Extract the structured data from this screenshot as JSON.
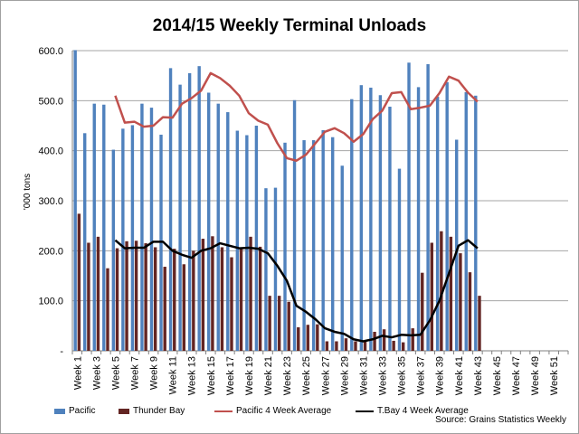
{
  "colors": {
    "pacific": "#4f81bd",
    "thunder_bay": "#632523",
    "pacific_avg": "#c0504d",
    "tbay_avg": "#000000",
    "grid": "#a6a6a6"
  },
  "chart_data": {
    "type": "bar",
    "title": "2014/15  Weekly Terminal Unloads",
    "xlabel": "",
    "ylabel": "'000 tons",
    "ylim": [
      0,
      600
    ],
    "yticks": [
      "-",
      "100.0",
      "200.0",
      "300.0",
      "400.0",
      "500.0",
      "600.0"
    ],
    "grid": true,
    "legend_position": "bottom",
    "categories": [
      "Week 1",
      "Week 2",
      "Week 3",
      "Week 4",
      "Week 5",
      "Week 6",
      "Week 7",
      "Week 8",
      "Week 9",
      "Week 10",
      "Week 11",
      "Week 12",
      "Week 13",
      "Week 14",
      "Week 15",
      "Week 16",
      "Week 17",
      "Week 18",
      "Week 19",
      "Week 20",
      "Week 21",
      "Week 22",
      "Week 23",
      "Week 24",
      "Week 25",
      "Week 26",
      "Week 27",
      "Week 28",
      "Week 29",
      "Week 30",
      "Week 31",
      "Week 32",
      "Week 33",
      "Week 34",
      "Week 35",
      "Week 36",
      "Week 37",
      "Week 38",
      "Week 39",
      "Week 40",
      "Week 41",
      "Week 42",
      "Week 43",
      "Week 44",
      "Week 45",
      "Week 46",
      "Week 47",
      "Week 48",
      "Week 49",
      "Week 50",
      "Week 51",
      "Week 52"
    ],
    "x_tick_labels": [
      "Week 1",
      "Week 3",
      "Week 5",
      "Week 7",
      "Week 9",
      "Week 11",
      "Week 13",
      "Week 15",
      "Week 17",
      "Week 19",
      "Week 21",
      "Week 23",
      "Week 25",
      "Week 27",
      "Week 29",
      "Week 31",
      "Week 33",
      "Week 35",
      "Week 37",
      "Week 39",
      "Week 41",
      "Week 43",
      "Week 45",
      "Week 47",
      "Week 49",
      "Week 51"
    ],
    "series": [
      {
        "name": "Pacific",
        "kind": "bar",
        "values": [
          601,
          435,
          494,
          492,
          402,
          444,
          451,
          494,
          486,
          432,
          565,
          532,
          555,
          569,
          516,
          494,
          477,
          440,
          431,
          450,
          325,
          326,
          416,
          501,
          421,
          421,
          441,
          427,
          370,
          503,
          531,
          526,
          511,
          488,
          364,
          576,
          527,
          573,
          508,
          537,
          422,
          517,
          510,
          null,
          null,
          null,
          null,
          null,
          null,
          null,
          null,
          null
        ]
      },
      {
        "name": "Thunder Bay",
        "kind": "bar",
        "values": [
          274,
          216,
          228,
          165,
          205,
          219,
          220,
          215,
          207,
          168,
          204,
          173,
          200,
          224,
          229,
          207,
          187,
          205,
          228,
          208,
          110,
          110,
          98,
          47,
          52,
          53,
          19,
          19,
          25,
          19,
          19,
          38,
          43,
          20,
          17,
          45,
          156,
          216,
          239,
          228,
          195,
          157,
          110,
          null,
          null,
          null,
          null,
          null,
          null,
          null,
          null,
          null
        ]
      },
      {
        "name": "Pacific 4 Week Average",
        "kind": "line",
        "values": [
          null,
          null,
          null,
          null,
          510,
          456,
          458,
          448,
          450,
          467,
          466,
          494,
          505,
          520,
          555,
          545,
          530,
          510,
          475,
          460,
          452,
          415,
          385,
          380,
          392,
          415,
          438,
          445,
          435,
          418,
          433,
          463,
          480,
          515,
          517,
          483,
          486,
          490,
          515,
          548,
          540,
          516,
          498,
          null,
          null,
          null,
          null,
          null,
          null,
          null,
          null,
          null
        ]
      },
      {
        "name": "T.Bay 4 Week Average",
        "kind": "line",
        "values": [
          null,
          null,
          null,
          null,
          221,
          205,
          206,
          206,
          218,
          218,
          200,
          192,
          186,
          200,
          205,
          215,
          210,
          205,
          206,
          204,
          195,
          170,
          140,
          90,
          78,
          63,
          45,
          38,
          34,
          23,
          19,
          23,
          30,
          27,
          32,
          31,
          32,
          61,
          100,
          155,
          210,
          221,
          205,
          null,
          null,
          null,
          null,
          null,
          null,
          null,
          null,
          null
        ]
      }
    ],
    "annotation": "Source: Grains Statistics Weekly"
  }
}
